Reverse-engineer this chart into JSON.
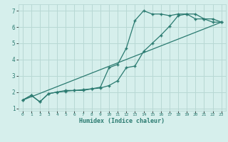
{
  "xlabel": "Humidex (Indice chaleur)",
  "bg_color": "#d6efec",
  "grid_color": "#b8d8d4",
  "line_color": "#2a7a70",
  "xlim": [
    -0.5,
    23.5
  ],
  "ylim": [
    0.85,
    7.4
  ],
  "xticks": [
    0,
    1,
    2,
    3,
    4,
    5,
    6,
    7,
    8,
    9,
    10,
    11,
    12,
    13,
    14,
    15,
    16,
    17,
    18,
    19,
    20,
    21,
    22,
    23
  ],
  "yticks": [
    1,
    2,
    3,
    4,
    5,
    6,
    7
  ],
  "line1_x": [
    0,
    1,
    2,
    3,
    4,
    5,
    6,
    7,
    8,
    9,
    10,
    11,
    12,
    13,
    14,
    15,
    16,
    17,
    18,
    19,
    20,
    21,
    22,
    23
  ],
  "line1_y": [
    1.5,
    1.8,
    1.4,
    1.9,
    2.0,
    2.1,
    2.1,
    2.15,
    2.2,
    2.3,
    3.5,
    3.7,
    4.7,
    6.4,
    7.0,
    6.8,
    6.8,
    6.7,
    6.8,
    6.8,
    6.5,
    6.5,
    6.3,
    6.3
  ],
  "line2_x": [
    0,
    1,
    2,
    3,
    4,
    5,
    6,
    7,
    8,
    9,
    10,
    11,
    12,
    13,
    14,
    15,
    16,
    17,
    18,
    19,
    20,
    21,
    22,
    23
  ],
  "line2_y": [
    1.5,
    1.8,
    1.4,
    1.9,
    2.0,
    2.05,
    2.1,
    2.1,
    2.2,
    2.25,
    2.4,
    2.7,
    3.5,
    3.6,
    4.5,
    5.0,
    5.5,
    6.05,
    6.7,
    6.8,
    6.8,
    6.5,
    6.5,
    6.3
  ],
  "line3_x": [
    0,
    23
  ],
  "line3_y": [
    1.5,
    6.3
  ]
}
